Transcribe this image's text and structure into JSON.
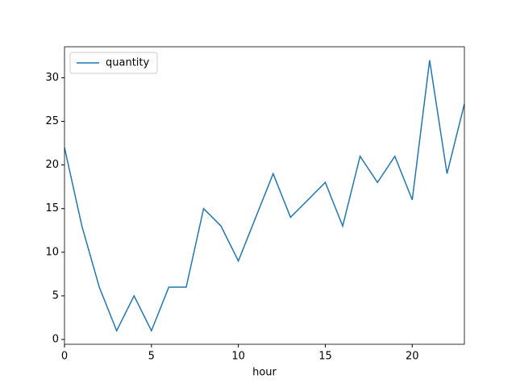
{
  "chart_data": {
    "type": "line",
    "x": [
      0,
      1,
      2,
      3,
      4,
      5,
      6,
      7,
      8,
      9,
      10,
      11,
      12,
      13,
      14,
      15,
      16,
      17,
      18,
      19,
      20,
      21,
      22,
      23
    ],
    "series": [
      {
        "name": "quantity",
        "color": "#1f77b4",
        "values": [
          22,
          13,
          6,
          1,
          5,
          1,
          6,
          6,
          15,
          13,
          9,
          14,
          19,
          14,
          16,
          18,
          13,
          21,
          18,
          21,
          16,
          32,
          19,
          27
        ]
      }
    ],
    "xlabel": "hour",
    "xlim": [
      0,
      23
    ],
    "xticks": [
      0,
      5,
      10,
      15,
      20
    ],
    "ylim": [
      -0.55,
      33.55
    ],
    "yticks": [
      0,
      5,
      10,
      15,
      20,
      25,
      30
    ],
    "legend": "upper left"
  }
}
